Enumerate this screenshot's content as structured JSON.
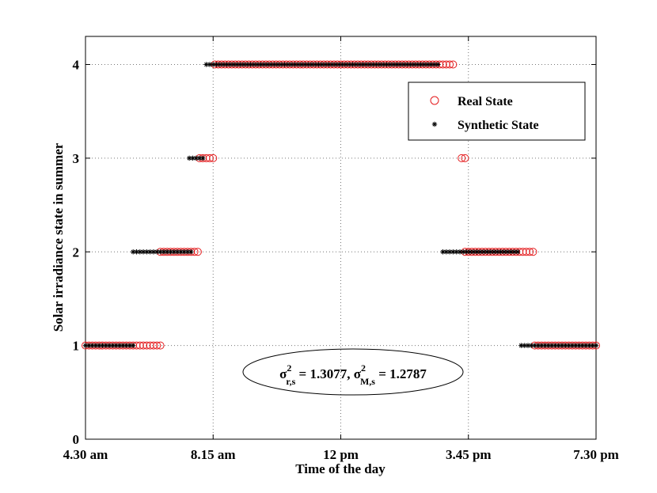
{
  "chart_data": {
    "type": "scatter",
    "title": "",
    "xlabel": "Time of the day",
    "ylabel": "Solar irradiance state in summer",
    "xlim": [
      4.5,
      19.5
    ],
    "ylim": [
      0,
      4.3
    ],
    "x_ticks": [
      {
        "value": 4.5,
        "label": "4.30 am"
      },
      {
        "value": 8.25,
        "label": "8.15 am"
      },
      {
        "value": 12.0,
        "label": "12 pm"
      },
      {
        "value": 15.75,
        "label": "3.45 pm"
      },
      {
        "value": 19.5,
        "label": "7.30 pm"
      }
    ],
    "y_ticks": [
      {
        "value": 0,
        "label": "0"
      },
      {
        "value": 1,
        "label": "1"
      },
      {
        "value": 2,
        "label": "2"
      },
      {
        "value": 3,
        "label": "3"
      },
      {
        "value": 4,
        "label": "4"
      }
    ],
    "grid": true,
    "legend_position": "top-right",
    "sampling_step_hours": 0.1,
    "series": [
      {
        "name": "Real State",
        "marker": "circle",
        "color": "#e41a1c",
        "segments": [
          {
            "state": 1,
            "from": 4.5,
            "to": 6.7
          },
          {
            "state": 2,
            "from": 6.7,
            "to": 7.85
          },
          {
            "state": 3,
            "from": 7.85,
            "to": 8.3
          },
          {
            "state": 4,
            "from": 8.3,
            "to": 15.35
          },
          {
            "state": 3,
            "from": 15.55,
            "to": 15.65
          },
          {
            "state": 2,
            "from": 15.65,
            "to": 17.7
          },
          {
            "state": 1,
            "from": 17.7,
            "to": 19.5
          }
        ]
      },
      {
        "name": "Synthetic State",
        "marker": "asterisk",
        "color": "#000000",
        "segments": [
          {
            "state": 1,
            "from": 4.5,
            "to": 5.9
          },
          {
            "state": 2,
            "from": 5.9,
            "to": 7.6
          },
          {
            "state": 3,
            "from": 7.55,
            "to": 8.0
          },
          {
            "state": 4,
            "from": 8.05,
            "to": 14.85
          },
          {
            "state": 2,
            "from": 15.0,
            "to": 17.25
          },
          {
            "state": 1,
            "from": 17.3,
            "to": 19.5
          }
        ]
      }
    ],
    "annotation": {
      "sigma_symbol": "σ",
      "exponent": "2",
      "sub_real": "r,s",
      "value_real": "1.3077",
      "sub_model": "M,s",
      "value_model": "1.2787",
      "equals": " = ",
      "separator": ", "
    }
  }
}
